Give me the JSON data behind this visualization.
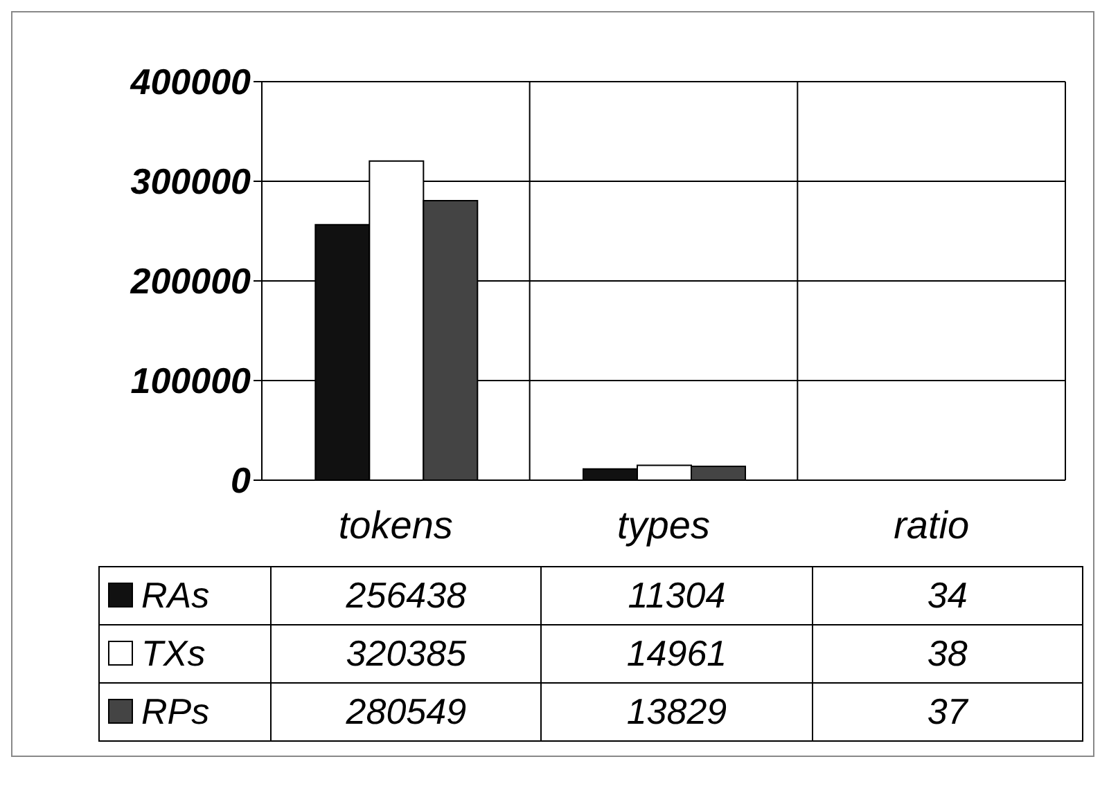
{
  "chart_data": {
    "type": "bar",
    "categories": [
      "tokens",
      "types",
      "ratio"
    ],
    "series": [
      {
        "name": "RAs",
        "color": "#111111",
        "values": [
          256438,
          11304,
          34
        ]
      },
      {
        "name": "TXs",
        "color": "#ffffff",
        "values": [
          320385,
          14961,
          38
        ]
      },
      {
        "name": "RPs",
        "color": "#444444",
        "values": [
          280549,
          13829,
          37
        ]
      }
    ],
    "ylim": [
      0,
      400000
    ],
    "yticks": [
      0,
      100000,
      200000,
      300000,
      400000
    ],
    "grid": true,
    "legend": "bottom",
    "data_labels": true
  }
}
